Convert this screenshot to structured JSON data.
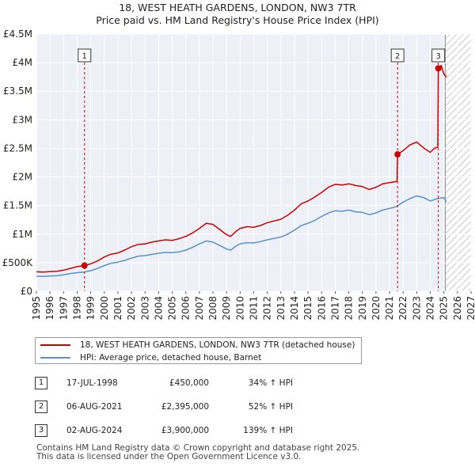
{
  "title": "18, WEST HEATH GARDENS, LONDON, NW3 7TR",
  "subtitle": "Price paid vs. HM Land Registry's House Price Index (HPI)",
  "chart_data": {
    "type": "line",
    "x_ticks": [
      1995,
      1996,
      1997,
      1998,
      1999,
      2000,
      2001,
      2002,
      2003,
      2004,
      2005,
      2006,
      2007,
      2008,
      2009,
      2010,
      2011,
      2012,
      2013,
      2014,
      2015,
      2016,
      2017,
      2018,
      2019,
      2020,
      2021,
      2022,
      2023,
      2024,
      2025,
      2026,
      2027
    ],
    "xlim": [
      1995,
      2027
    ],
    "ylim": [
      0,
      4500000
    ],
    "y_ticks": [
      {
        "value": 0,
        "label": "£0"
      },
      {
        "value": 500000,
        "label": "£500K"
      },
      {
        "value": 1000000,
        "label": "£1M"
      },
      {
        "value": 1500000,
        "label": "£1.5M"
      },
      {
        "value": 2000000,
        "label": "£2M"
      },
      {
        "value": 2500000,
        "label": "£2.5M"
      },
      {
        "value": 3000000,
        "label": "£3M"
      },
      {
        "value": 3500000,
        "label": "£3.5M"
      },
      {
        "value": 4000000,
        "label": "£4M"
      },
      {
        "value": 4500000,
        "label": "£4.5M"
      }
    ],
    "future_from": 2025.1,
    "series": [
      {
        "name": "18, WEST HEATH GARDENS, LONDON, NW3 7TR (detached house)",
        "color": "#cc0000",
        "points": [
          [
            1995.0,
            340000
          ],
          [
            1995.5,
            335000
          ],
          [
            1996.0,
            345000
          ],
          [
            1996.5,
            350000
          ],
          [
            1997.0,
            370000
          ],
          [
            1997.5,
            400000
          ],
          [
            1998.0,
            430000
          ],
          [
            1998.54,
            450000
          ],
          [
            1999.0,
            480000
          ],
          [
            1999.5,
            530000
          ],
          [
            2000.0,
            600000
          ],
          [
            2000.5,
            650000
          ],
          [
            2001.0,
            670000
          ],
          [
            2001.5,
            720000
          ],
          [
            2002.0,
            780000
          ],
          [
            2002.5,
            820000
          ],
          [
            2003.0,
            830000
          ],
          [
            2003.5,
            860000
          ],
          [
            2004.0,
            880000
          ],
          [
            2004.5,
            900000
          ],
          [
            2005.0,
            890000
          ],
          [
            2005.5,
            920000
          ],
          [
            2006.0,
            960000
          ],
          [
            2006.5,
            1020000
          ],
          [
            2007.0,
            1100000
          ],
          [
            2007.5,
            1190000
          ],
          [
            2008.0,
            1170000
          ],
          [
            2008.5,
            1080000
          ],
          [
            2009.0,
            990000
          ],
          [
            2009.3,
            960000
          ],
          [
            2009.7,
            1050000
          ],
          [
            2010.0,
            1100000
          ],
          [
            2010.5,
            1130000
          ],
          [
            2011.0,
            1120000
          ],
          [
            2011.5,
            1150000
          ],
          [
            2012.0,
            1200000
          ],
          [
            2012.5,
            1230000
          ],
          [
            2013.0,
            1260000
          ],
          [
            2013.5,
            1330000
          ],
          [
            2014.0,
            1420000
          ],
          [
            2014.5,
            1530000
          ],
          [
            2015.0,
            1580000
          ],
          [
            2015.5,
            1650000
          ],
          [
            2016.0,
            1730000
          ],
          [
            2016.5,
            1820000
          ],
          [
            2017.0,
            1870000
          ],
          [
            2017.5,
            1860000
          ],
          [
            2018.0,
            1880000
          ],
          [
            2018.5,
            1850000
          ],
          [
            2019.0,
            1830000
          ],
          [
            2019.5,
            1780000
          ],
          [
            2020.0,
            1820000
          ],
          [
            2020.5,
            1880000
          ],
          [
            2021.0,
            1900000
          ],
          [
            2021.55,
            1920000
          ],
          [
            2021.59,
            2395000
          ],
          [
            2022.0,
            2460000
          ],
          [
            2022.5,
            2560000
          ],
          [
            2023.0,
            2610000
          ],
          [
            2023.5,
            2510000
          ],
          [
            2024.0,
            2430000
          ],
          [
            2024.3,
            2500000
          ],
          [
            2024.55,
            2520000
          ],
          [
            2024.59,
            3900000
          ],
          [
            2024.8,
            3950000
          ],
          [
            2025.0,
            3800000
          ],
          [
            2025.2,
            3750000
          ]
        ]
      },
      {
        "name": "HPI: Average price, detached house, Barnet",
        "color": "#5b8fd0",
        "points": [
          [
            1995.0,
            265000
          ],
          [
            1995.5,
            260000
          ],
          [
            1996.0,
            268000
          ],
          [
            1996.5,
            272000
          ],
          [
            1997.0,
            290000
          ],
          [
            1997.5,
            310000
          ],
          [
            1998.0,
            325000
          ],
          [
            1998.5,
            335000
          ],
          [
            1999.0,
            360000
          ],
          [
            1999.5,
            400000
          ],
          [
            2000.0,
            450000
          ],
          [
            2000.5,
            490000
          ],
          [
            2001.0,
            510000
          ],
          [
            2001.5,
            540000
          ],
          [
            2002.0,
            580000
          ],
          [
            2002.5,
            615000
          ],
          [
            2003.0,
            625000
          ],
          [
            2003.5,
            645000
          ],
          [
            2004.0,
            665000
          ],
          [
            2004.5,
            680000
          ],
          [
            2005.0,
            675000
          ],
          [
            2005.5,
            690000
          ],
          [
            2006.0,
            720000
          ],
          [
            2006.5,
            770000
          ],
          [
            2007.0,
            830000
          ],
          [
            2007.5,
            880000
          ],
          [
            2008.0,
            860000
          ],
          [
            2008.5,
            800000
          ],
          [
            2009.0,
            740000
          ],
          [
            2009.3,
            720000
          ],
          [
            2009.7,
            790000
          ],
          [
            2010.0,
            830000
          ],
          [
            2010.5,
            850000
          ],
          [
            2011.0,
            845000
          ],
          [
            2011.5,
            870000
          ],
          [
            2012.0,
            900000
          ],
          [
            2012.5,
            925000
          ],
          [
            2013.0,
            950000
          ],
          [
            2013.5,
            1000000
          ],
          [
            2014.0,
            1070000
          ],
          [
            2014.5,
            1150000
          ],
          [
            2015.0,
            1190000
          ],
          [
            2015.5,
            1240000
          ],
          [
            2016.0,
            1310000
          ],
          [
            2016.5,
            1370000
          ],
          [
            2017.0,
            1410000
          ],
          [
            2017.5,
            1400000
          ],
          [
            2018.0,
            1420000
          ],
          [
            2018.5,
            1390000
          ],
          [
            2019.0,
            1380000
          ],
          [
            2019.5,
            1340000
          ],
          [
            2020.0,
            1370000
          ],
          [
            2020.5,
            1420000
          ],
          [
            2021.0,
            1450000
          ],
          [
            2021.5,
            1480000
          ],
          [
            2022.0,
            1560000
          ],
          [
            2022.5,
            1620000
          ],
          [
            2023.0,
            1670000
          ],
          [
            2023.5,
            1640000
          ],
          [
            2024.0,
            1580000
          ],
          [
            2024.5,
            1620000
          ],
          [
            2025.0,
            1640000
          ],
          [
            2025.2,
            1560000
          ]
        ]
      }
    ],
    "sales": [
      {
        "id": "1",
        "x": 1998.54,
        "price": 450000
      },
      {
        "id": "2",
        "x": 2021.59,
        "price": 2395000
      },
      {
        "id": "3",
        "x": 2024.59,
        "price": 3900000
      }
    ]
  },
  "legend": {
    "property_label": "18, WEST HEATH GARDENS, LONDON, NW3 7TR (detached house)",
    "property_color": "#cc0000",
    "hpi_label": "HPI: Average price, detached house, Barnet",
    "hpi_color": "#5b8fd0"
  },
  "sales_table": [
    {
      "num": "1",
      "date": "17-JUL-1998",
      "price": "£450,000",
      "hpi": "34% ↑ HPI"
    },
    {
      "num": "2",
      "date": "06-AUG-2021",
      "price": "£2,395,000",
      "hpi": "52% ↑ HPI"
    },
    {
      "num": "3",
      "date": "02-AUG-2024",
      "price": "£3,900,000",
      "hpi": "139% ↑ HPI"
    }
  ],
  "footer": {
    "line1": "Contains HM Land Registry data © Crown copyright and database right 2025.",
    "line2": "This data is licensed under the Open Government Licence v3.0."
  }
}
